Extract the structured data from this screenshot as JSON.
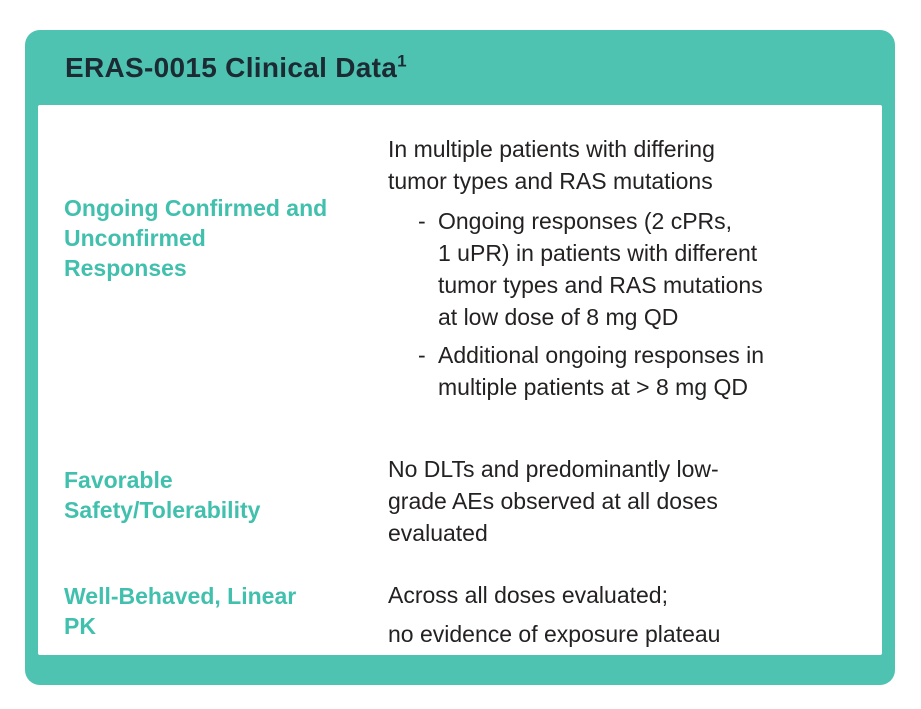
{
  "card": {
    "title": "ERAS-0015 Clinical Data",
    "title_superscript": "1",
    "bullet_marker": "-",
    "colors": {
      "frame_teal": "#4EC3B1",
      "label_teal": "#41C0AD",
      "title_color": "#1C2B33",
      "body_color": "#242121"
    },
    "rows": [
      {
        "label": "Ongoing Confirmed and Unconfirmed Responses",
        "intro_lines": [
          "In multiple patients with differing",
          "tumor types and RAS mutations"
        ],
        "bullets": [
          {
            "lines": [
              "Ongoing responses (2 cPRs,",
              "1 uPR) in patients with different",
              "tumor types and RAS mutations",
              "at low dose of 8 mg QD"
            ]
          },
          {
            "lines": [
              "Additional ongoing responses in",
              "multiple patients at > 8 mg QD"
            ]
          }
        ]
      },
      {
        "label": "Favorable Safety/Tolerability",
        "lines": [
          "No DLTs and predominantly low-",
          "grade AEs observed at all doses",
          "evaluated"
        ]
      },
      {
        "label": "Well-Behaved, Linear PK",
        "lines": [
          "Across all doses evaluated;",
          "no evidence of exposure plateau"
        ]
      }
    ]
  }
}
